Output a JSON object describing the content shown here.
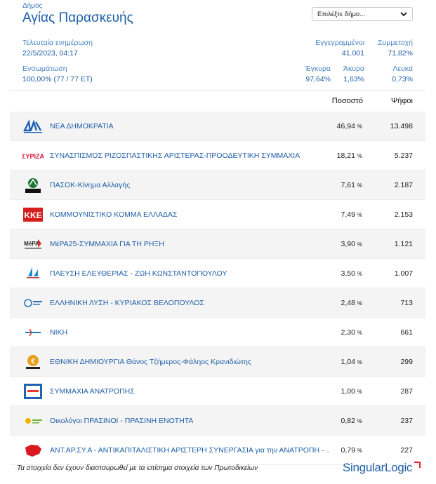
{
  "header": {
    "label": "Δήμος",
    "name": "Αγίας Παρασκευής"
  },
  "select": {
    "placeholder": "Επιλέξτε δήμο..."
  },
  "update": {
    "label": "Τελευταία ενημέρωση",
    "value": "22/5/2023, 04:17"
  },
  "registered": {
    "label": "Εγγεγραμμένοι",
    "value": "41.001"
  },
  "turnout": {
    "label": "Συμμετοχή",
    "value": "71,82%"
  },
  "integration": {
    "label": "Ενσωμάτωση",
    "value": "100,00% (77 / 77 ΕΤ)"
  },
  "valid": {
    "label": "Έγκυρα",
    "value": "97,64%"
  },
  "invalid": {
    "label": "Άκυρα",
    "value": "1,63%"
  },
  "blank": {
    "label": "Λευκά",
    "value": "0,73%"
  },
  "columns": {
    "percent": "Ποσοστό",
    "votes": "Ψήφοι"
  },
  "parties": [
    {
      "name": "ΝΕΑ ΔΗΜΟΚΡΑΤΙΑ",
      "pct": "46,94",
      "votes": "13.498",
      "logo": "nd-logo-icon",
      "color": "#1c5fb2"
    },
    {
      "name": "ΣΥΝΑΣΠΙΣΜΟΣ ΡΙΖΟΣΠΑΣΤΙΚΗΣ ΑΡΙΣΤΕΡΑΣ-ΠΡΟΟΔΕΥΤΙΚΗ ΣΥΜΜΑΧΙΑ",
      "pct": "18,21",
      "votes": "5.237",
      "logo": "syriza-logo-icon",
      "color": "#d4133a"
    },
    {
      "name": "ΠΑΣΟΚ-Κίνημα Αλλαγής",
      "pct": "7,61",
      "votes": "2.187",
      "logo": "pasok-logo-icon",
      "color": "#1d7a36"
    },
    {
      "name": "ΚΟΜΜΟΥΝΙΣΤΙΚΟ ΚΟΜΜΑ ΕΛΛΑΔΑΣ",
      "pct": "7,49",
      "votes": "2.153",
      "logo": "kke-logo-icon",
      "color": "#d61e1e"
    },
    {
      "name": "ΜέΡΑ25-ΣΥΜΜΑΧΙΑ ΓΙΑ ΤΗ ΡΗΞΗ",
      "pct": "3,90",
      "votes": "1.121",
      "logo": "mera25-logo-icon",
      "color": "#d33030"
    },
    {
      "name": "ΠΛΕΥΣΗ ΕΛΕΥΘΕΡΙΑΣ - ΖΩΗ ΚΩΝΣΤΑΝΤΟΠΟΥΛΟΥ",
      "pct": "3,50",
      "votes": "1.007",
      "logo": "plefsi-logo-icon",
      "color": "#1d8fd0"
    },
    {
      "name": "ΕΛΛΗΝΙΚΗ ΛΥΣΗ - ΚΥΡΙΑΚΟΣ ΒΕΛΟΠΟΥΛΟΣ",
      "pct": "2,48",
      "votes": "713",
      "logo": "elliniki-lysi-logo-icon",
      "color": "#2b6fb8"
    },
    {
      "name": "ΝΙΚΗ",
      "pct": "2,30",
      "votes": "661",
      "logo": "niki-logo-icon",
      "color": "#1b7bc6"
    },
    {
      "name": "ΕΘΝΙΚΗ ΔΗΜΙΟΥΡΓΙΑ Θάνος Τζήμερος-Φάληος Κρανιδιώτης",
      "pct": "1,04",
      "votes": "299",
      "logo": "ethniki-dimiourgia-logo-icon",
      "color": "#e8a01c"
    },
    {
      "name": "ΣΥΜΜΑΧΙΑ ΑΝΑΤΡΟΠΗΣ",
      "pct": "1,00",
      "votes": "287",
      "logo": "symmachia-logo-icon",
      "color": "#1f63b2"
    },
    {
      "name": "Οικολόγοι ΠΡΑΣΙΝΟΙ - ΠΡΑΣΙΝΗ ΕΝΟΤΗΤΑ",
      "pct": "0,82",
      "votes": "237",
      "logo": "green-logo-icon",
      "color": "#6fb33a"
    },
    {
      "name": "ΑΝΤ.ΑΡ.ΣΥ.Α - ΑΝΤΙΚΑΠΙΤΑΛΙΣΤΙΚΗ ΑΡΙΣΤΕΡΗ ΣΥΝΕΡΓΑΣΙΑ για την ΑΝΑΤΡΟΠΗ - ...",
      "pct": "0,79",
      "votes": "227",
      "logo": "antarsya-logo-icon",
      "color": "#d8191f"
    }
  ],
  "percent_unit": "%",
  "footer": {
    "note": "Τα στοιχεία δεν έχουν διασταυρωθεί με τα επίσημα στοιχεία των Πρωτοδικείων",
    "brand_a": "Singular",
    "brand_b": "Logic"
  }
}
